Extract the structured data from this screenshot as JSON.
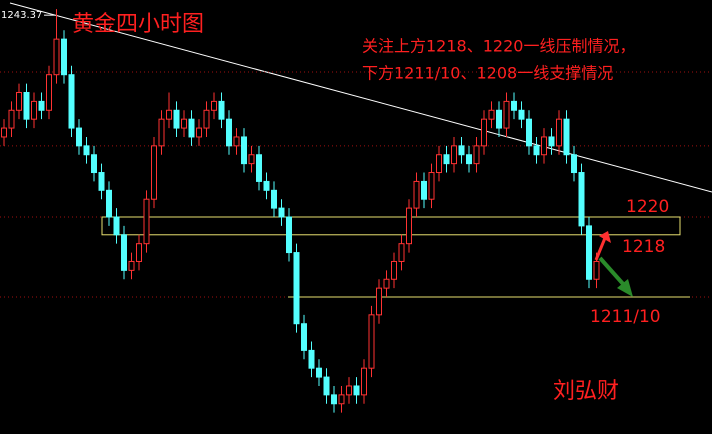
{
  "chart_data": {
    "type": "candlestick",
    "title": "黄金四小时图",
    "notes": [
      "关注上方1218、1220一线压制情况，",
      "下方1211/10、1208一线支撑情况"
    ],
    "author": "刘弘财",
    "high_label": {
      "value": 1243.37,
      "label": "1243.37"
    },
    "ylim": [
      1195.6,
      1244.4
    ],
    "grid": [
      1236.3,
      1228,
      1220,
      1211
    ],
    "up_color": "#ff3232",
    "down_color": "#54ffff",
    "levels": [
      {
        "value": 1220,
        "label": "1220"
      },
      {
        "value": 1218,
        "label": "1218"
      },
      {
        "value": 1211,
        "label": "1211/10"
      }
    ],
    "candles": [
      [
        1229,
        1231,
        1228,
        1230
      ],
      [
        1230,
        1233,
        1229,
        1232
      ],
      [
        1232,
        1235,
        1231,
        1234
      ],
      [
        1234,
        1235,
        1230,
        1231
      ],
      [
        1231,
        1234,
        1230,
        1233
      ],
      [
        1233,
        1234,
        1231,
        1232
      ],
      [
        1232,
        1237,
        1231,
        1236
      ],
      [
        1236,
        1243.37,
        1235,
        1240
      ],
      [
        1240,
        1241,
        1235,
        1236
      ],
      [
        1236,
        1237,
        1229,
        1230
      ],
      [
        1230,
        1231,
        1227,
        1228
      ],
      [
        1228,
        1229,
        1226,
        1227
      ],
      [
        1227,
        1228,
        1224,
        1225
      ],
      [
        1225,
        1226,
        1222,
        1223
      ],
      [
        1223,
        1224,
        1219,
        1220
      ],
      [
        1220,
        1221,
        1217,
        1218
      ],
      [
        1218,
        1219,
        1213,
        1214
      ],
      [
        1214,
        1216,
        1213,
        1215
      ],
      [
        1215,
        1218,
        1214,
        1217
      ],
      [
        1217,
        1223,
        1216,
        1222
      ],
      [
        1222,
        1229,
        1221,
        1228
      ],
      [
        1228,
        1232,
        1227,
        1231
      ],
      [
        1231,
        1234,
        1230,
        1232
      ],
      [
        1232,
        1233,
        1229,
        1230
      ],
      [
        1230,
        1232,
        1229,
        1231
      ],
      [
        1231,
        1232,
        1228,
        1229
      ],
      [
        1229,
        1231,
        1228,
        1230
      ],
      [
        1230,
        1233,
        1229,
        1232
      ],
      [
        1232,
        1234,
        1231,
        1233
      ],
      [
        1233,
        1234,
        1230,
        1231
      ],
      [
        1231,
        1232,
        1227,
        1228
      ],
      [
        1228,
        1230,
        1227,
        1229
      ],
      [
        1229,
        1230,
        1225,
        1226
      ],
      [
        1226,
        1228,
        1225,
        1227
      ],
      [
        1227,
        1228,
        1223,
        1224
      ],
      [
        1224,
        1225,
        1222,
        1223
      ],
      [
        1223,
        1224,
        1220,
        1221
      ],
      [
        1221,
        1222,
        1219,
        1220
      ],
      [
        1220,
        1221,
        1215,
        1216
      ],
      [
        1216,
        1217,
        1207,
        1208
      ],
      [
        1208,
        1209,
        1204,
        1205
      ],
      [
        1205,
        1206,
        1202,
        1203
      ],
      [
        1203,
        1204,
        1201,
        1202
      ],
      [
        1202,
        1203,
        1199,
        1200
      ],
      [
        1200,
        1201,
        1198,
        1199
      ],
      [
        1199,
        1201,
        1198,
        1200
      ],
      [
        1200,
        1202,
        1199,
        1201
      ],
      [
        1201,
        1202,
        1199,
        1200
      ],
      [
        1200,
        1204,
        1199,
        1203
      ],
      [
        1203,
        1210,
        1202,
        1209
      ],
      [
        1209,
        1213,
        1208,
        1212
      ],
      [
        1212,
        1214,
        1211,
        1213
      ],
      [
        1213,
        1216,
        1212,
        1215
      ],
      [
        1215,
        1218,
        1214,
        1217
      ],
      [
        1217,
        1222,
        1216,
        1221
      ],
      [
        1221,
        1225,
        1220,
        1224
      ],
      [
        1224,
        1225,
        1221,
        1222
      ],
      [
        1222,
        1226,
        1221,
        1225
      ],
      [
        1225,
        1228,
        1224,
        1227
      ],
      [
        1227,
        1228,
        1225,
        1226
      ],
      [
        1226,
        1229,
        1225,
        1228
      ],
      [
        1228,
        1229,
        1226,
        1227
      ],
      [
        1227,
        1228,
        1225,
        1226
      ],
      [
        1226,
        1229,
        1225,
        1228
      ],
      [
        1228,
        1232,
        1227,
        1231
      ],
      [
        1231,
        1233,
        1230,
        1232
      ],
      [
        1232,
        1233,
        1229,
        1230
      ],
      [
        1230,
        1234,
        1229,
        1233
      ],
      [
        1233,
        1234,
        1231,
        1232
      ],
      [
        1232,
        1233,
        1230,
        1231
      ],
      [
        1231,
        1232,
        1227,
        1228
      ],
      [
        1228,
        1229,
        1226,
        1227
      ],
      [
        1227,
        1230,
        1226,
        1229
      ],
      [
        1229,
        1230,
        1227,
        1228
      ],
      [
        1228,
        1232,
        1227,
        1231
      ],
      [
        1231,
        1232,
        1226,
        1227
      ],
      [
        1227,
        1228,
        1224,
        1225
      ],
      [
        1225,
        1226,
        1218,
        1219
      ],
      [
        1219,
        1220,
        1212,
        1213
      ],
      [
        1213,
        1216,
        1212,
        1215
      ]
    ]
  }
}
